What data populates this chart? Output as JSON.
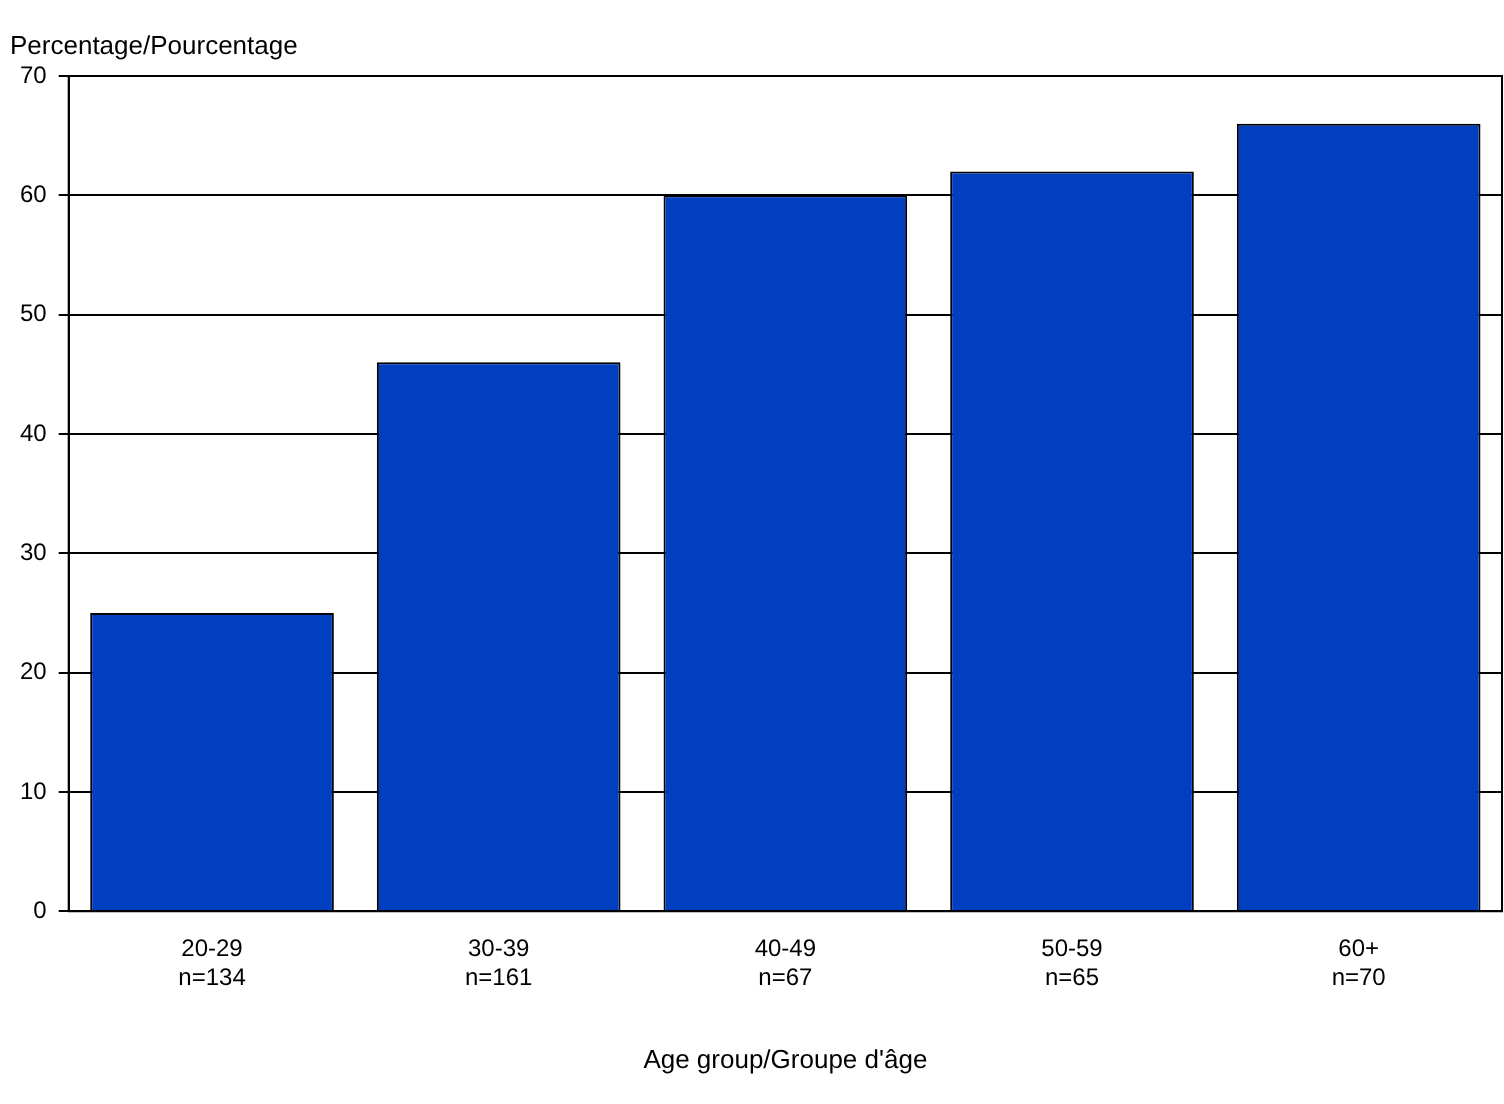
{
  "chart_data": {
    "type": "bar",
    "ylabel": "Percentage/Pourcentage",
    "xlabel": "Age group/Groupe d'âge",
    "categories": [
      "20-29\nn=134",
      "30-39\nn=161",
      "40-49\nn=67",
      "50-59\nn=65",
      "60+\nn=70"
    ],
    "values": [
      25,
      46,
      60,
      62,
      66
    ],
    "color": "#0040c0",
    "ylim": [
      0,
      70
    ],
    "yticks": [
      0,
      10,
      20,
      30,
      40,
      50,
      60,
      70
    ],
    "grid": "y",
    "legend": false
  }
}
